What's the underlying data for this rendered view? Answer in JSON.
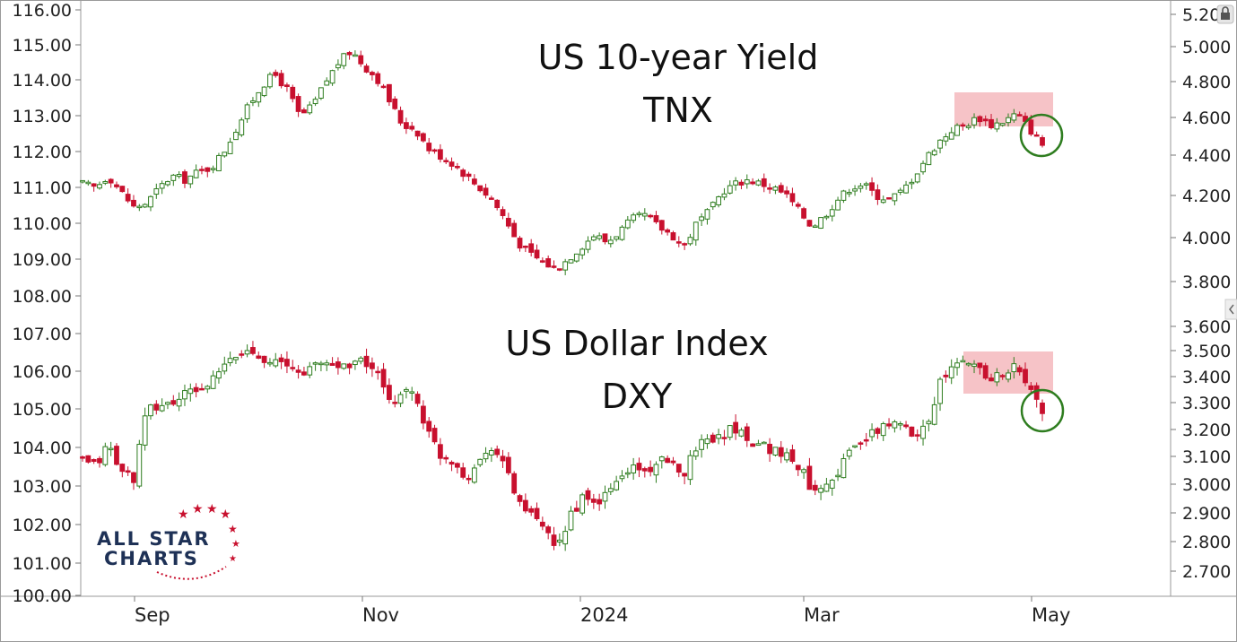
{
  "chart_data": {
    "type": "candlestick",
    "x_tick_labels": [
      "Sep",
      "Nov",
      "2024",
      "Mar",
      "May"
    ],
    "left_axis": {
      "tick_labels": [
        "116.00",
        "115.00",
        "114.00",
        "113.00",
        "112.00",
        "111.00",
        "110.00",
        "109.00",
        "108.00",
        "107.00",
        "106.00",
        "105.00",
        "104.00",
        "103.00",
        "102.00",
        "101.00",
        "100.00"
      ]
    },
    "right_axis_top": {
      "tick_labels": [
        "5.200",
        "5.000",
        "4.800",
        "4.600",
        "4.400",
        "4.200",
        "4.000",
        "3.800"
      ]
    },
    "right_axis_bottom": {
      "tick_labels": [
        "3.600",
        "3.500",
        "3.400",
        "3.300",
        "3.200",
        "3.100",
        "3.000",
        "2.900",
        "2.800",
        "2.700"
      ]
    },
    "annotations": {
      "top_title": "US 10-year Yield",
      "top_symbol": "TNX",
      "bottom_title": "US Dollar Index",
      "bottom_symbol": "DXY"
    },
    "colors": {
      "up": "#2e7d1f",
      "down": "#c8102e",
      "highlight": "#f4b9bd",
      "circle": "#2e7d1f"
    },
    "series": [
      {
        "name": "TNX",
        "axis": "right",
        "close_path": [
          4.3,
          4.28,
          4.34,
          4.26,
          4.18,
          4.2,
          4.28,
          4.34,
          4.32,
          4.36,
          4.38,
          4.46,
          4.58,
          4.7,
          4.8,
          4.86,
          4.78,
          4.64,
          4.7,
          4.82,
          4.92,
          4.98,
          4.9,
          4.84,
          4.72,
          4.6,
          4.58,
          4.48,
          4.44,
          4.4,
          4.34,
          4.28,
          4.22,
          4.12,
          4.0,
          3.94,
          3.9,
          3.86,
          3.92,
          3.98,
          4.04,
          4.0,
          4.06,
          4.12,
          4.14,
          4.08,
          4.04,
          3.98,
          4.1,
          4.16,
          4.26,
          4.3,
          4.32,
          4.3,
          4.28,
          4.24,
          4.16,
          4.08,
          4.14,
          4.22,
          4.28,
          4.3,
          4.24,
          4.22,
          4.26,
          4.34,
          4.44,
          4.52,
          4.58,
          4.6,
          4.64,
          4.6,
          4.62,
          4.66,
          4.58,
          4.5
        ],
        "highlight_range": [
          4.58,
          4.72
        ],
        "circled_close": 4.5
      },
      {
        "name": "DXY",
        "axis": "right",
        "close_path": [
          3.1,
          3.08,
          3.16,
          3.06,
          3.04,
          3.28,
          3.3,
          3.31,
          3.34,
          3.36,
          3.38,
          3.44,
          3.48,
          3.5,
          3.48,
          3.46,
          3.44,
          3.42,
          3.44,
          3.46,
          3.44,
          3.46,
          3.46,
          3.42,
          3.3,
          3.36,
          3.34,
          3.2,
          3.12,
          3.1,
          3.04,
          3.1,
          3.16,
          3.08,
          2.96,
          2.9,
          2.86,
          2.76,
          2.9,
          2.96,
          2.94,
          2.98,
          3.04,
          3.08,
          3.06,
          3.1,
          3.08,
          3.06,
          3.16,
          3.18,
          3.2,
          3.22,
          3.18,
          3.16,
          3.14,
          3.12,
          3.08,
          3.0,
          3.02,
          3.06,
          3.14,
          3.18,
          3.2,
          3.24,
          3.22,
          3.2,
          3.24,
          3.38,
          3.44,
          3.46,
          3.44,
          3.4,
          3.42,
          3.44,
          3.36,
          3.28
        ],
        "highlight_range": [
          3.36,
          3.48
        ],
        "circled_close": 3.28
      }
    ]
  }
}
